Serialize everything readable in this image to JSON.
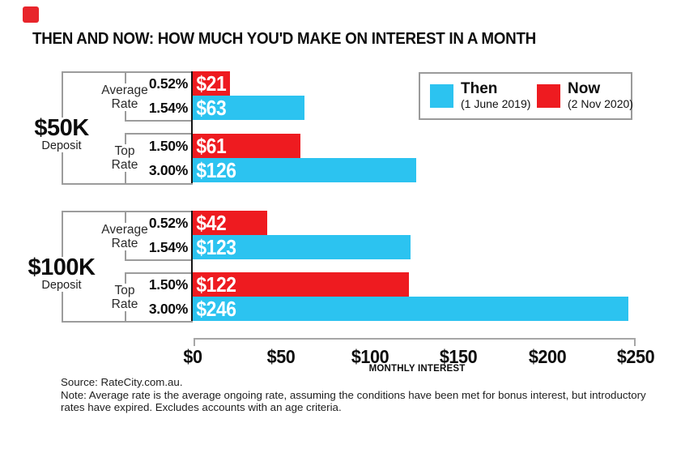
{
  "brand": {
    "logo_color": "#e8252b"
  },
  "title": "THEN AND NOW: HOW MUCH YOU'D MAKE ON INTEREST IN A MONTH",
  "legend": {
    "then": {
      "label": "Then",
      "sublabel": "(1 June 2019)",
      "color": "#2cc3f0"
    },
    "now": {
      "label": "Now",
      "sublabel": "(2 Nov 2020)",
      "color": "#ee1b20"
    }
  },
  "chart_data": {
    "type": "bar",
    "orientation": "horizontal",
    "title": "THEN AND NOW: HOW MUCH YOU'D MAKE ON INTEREST IN A MONTH",
    "xlabel": "MONTHLY INTEREST",
    "xlim": [
      0,
      250
    ],
    "x_ticks": [
      "$0",
      "$50",
      "$100",
      "$150",
      "$200",
      "$250"
    ],
    "grid": false,
    "legend_position": "top-right",
    "series_colors": {
      "then": "#2cc3f0",
      "now": "#ee1b20"
    },
    "groups": [
      {
        "deposit": "$50K",
        "deposit_sub": "Deposit",
        "pairs": [
          {
            "label_lines": [
              "Average",
              "Rate"
            ],
            "bars": [
              {
                "series": "now",
                "rate": "0.52%",
                "value": 21,
                "value_label": "$21"
              },
              {
                "series": "then",
                "rate": "1.54%",
                "value": 63,
                "value_label": "$63"
              }
            ]
          },
          {
            "label_lines": [
              "Top",
              "Rate"
            ],
            "bars": [
              {
                "series": "now",
                "rate": "1.50%",
                "value": 61,
                "value_label": "$61"
              },
              {
                "series": "then",
                "rate": "3.00%",
                "value": 126,
                "value_label": "$126"
              }
            ]
          }
        ]
      },
      {
        "deposit": "$100K",
        "deposit_sub": "Deposit",
        "pairs": [
          {
            "label_lines": [
              "Average",
              "Rate"
            ],
            "bars": [
              {
                "series": "now",
                "rate": "0.52%",
                "value": 42,
                "value_label": "$42"
              },
              {
                "series": "then",
                "rate": "1.54%",
                "value": 123,
                "value_label": "$123"
              }
            ]
          },
          {
            "label_lines": [
              "Top",
              "Rate"
            ],
            "bars": [
              {
                "series": "now",
                "rate": "1.50%",
                "value": 122,
                "value_label": "$122"
              },
              {
                "series": "then",
                "rate": "3.00%",
                "value": 246,
                "value_label": "$246"
              }
            ]
          }
        ]
      }
    ]
  },
  "footer": {
    "source": "Source: RateCity.com.au.",
    "note": "Note: Average rate is the average ongoing rate, assuming the conditions have been met for bonus interest, but introductory rates have expired. Excludes accounts with an age criteria."
  }
}
